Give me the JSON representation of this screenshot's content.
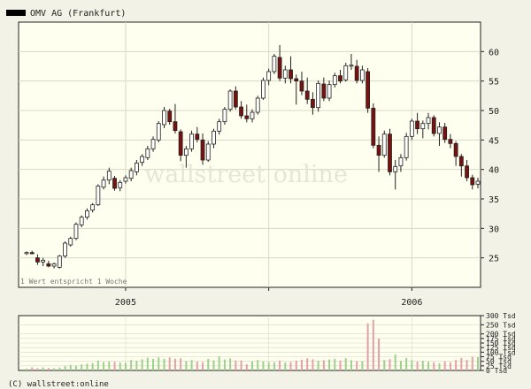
{
  "chart_data": {
    "type": "candlestick",
    "title": "OMV AG (Frankfurt)",
    "legend_swatch_color": "#000000",
    "note": "1 Wert entspricht 1 Woche",
    "copyright": "(C) wallstreet:online",
    "watermark": "wallstreet online",
    "x_tick_labels": [
      {
        "label": "2005",
        "index": 18
      },
      {
        "label": "2006",
        "index": 70
      }
    ],
    "price_axis": {
      "ylim": [
        20,
        65
      ],
      "ticks": [
        25,
        30,
        35,
        40,
        45,
        50,
        55,
        60
      ]
    },
    "volume_axis": {
      "ylim": [
        0,
        300
      ],
      "ticks": [
        0,
        25,
        50,
        75,
        100,
        125,
        150,
        175,
        200,
        250,
        300
      ],
      "unit": "Tsd"
    },
    "colors": {
      "up": "#ffffff",
      "down": "#7a1010",
      "vol_up": "#9cd08c",
      "vol_down": "#e4a0a8",
      "grid": "#d8d8c8",
      "plot_bg": "#ffffef"
    },
    "candles": [
      [
        25.8,
        26.1,
        25.5,
        25.9
      ],
      [
        25.9,
        26.2,
        25.6,
        25.7
      ],
      [
        25.0,
        25.6,
        23.8,
        24.3
      ],
      [
        24.3,
        25.0,
        23.6,
        24.6
      ],
      [
        24.0,
        24.5,
        23.4,
        23.6
      ],
      [
        23.6,
        24.2,
        23.2,
        24.0
      ],
      [
        23.4,
        25.5,
        23.2,
        25.3
      ],
      [
        25.3,
        27.8,
        25.0,
        27.5
      ],
      [
        27.2,
        28.6,
        26.9,
        28.3
      ],
      [
        28.3,
        31.0,
        28.0,
        30.7
      ],
      [
        30.6,
        32.2,
        30.2,
        31.9
      ],
      [
        31.9,
        33.4,
        31.5,
        33.0
      ],
      [
        33.1,
        34.3,
        32.7,
        34.0
      ],
      [
        34.0,
        37.5,
        33.8,
        37.2
      ],
      [
        37.0,
        38.8,
        36.6,
        38.2
      ],
      [
        38.2,
        40.3,
        37.5,
        39.7
      ],
      [
        38.5,
        38.9,
        36.4,
        36.8
      ],
      [
        36.9,
        38.2,
        36.3,
        37.8
      ],
      [
        38.0,
        39.0,
        37.6,
        38.6
      ],
      [
        38.5,
        40.3,
        38.0,
        39.8
      ],
      [
        39.6,
        41.6,
        39.0,
        41.1
      ],
      [
        41.2,
        42.6,
        40.6,
        42.2
      ],
      [
        42.0,
        44.0,
        41.6,
        43.5
      ],
      [
        43.5,
        45.6,
        43.0,
        45.1
      ],
      [
        45.0,
        48.2,
        44.6,
        47.8
      ],
      [
        47.6,
        50.6,
        47.0,
        50.0
      ],
      [
        49.9,
        50.3,
        47.6,
        48.1
      ],
      [
        48.1,
        51.1,
        46.1,
        46.6
      ],
      [
        46.4,
        46.8,
        41.4,
        42.4
      ],
      [
        42.4,
        44.0,
        40.3,
        43.5
      ],
      [
        43.5,
        46.6,
        43.0,
        46.0
      ],
      [
        46.0,
        47.2,
        44.6,
        45.1
      ],
      [
        45.0,
        46.1,
        40.8,
        41.6
      ],
      [
        41.6,
        44.8,
        41.3,
        44.3
      ],
      [
        44.3,
        46.9,
        43.6,
        46.5
      ],
      [
        46.5,
        48.6,
        45.9,
        48.1
      ],
      [
        48.1,
        50.6,
        47.6,
        50.2
      ],
      [
        50.2,
        53.6,
        49.8,
        53.3
      ],
      [
        53.3,
        54.1,
        50.2,
        50.6
      ],
      [
        50.6,
        51.6,
        48.6,
        49.1
      ],
      [
        49.1,
        51.0,
        48.0,
        48.6
      ],
      [
        48.6,
        50.2,
        48.0,
        49.7
      ],
      [
        49.7,
        52.5,
        49.3,
        52.1
      ],
      [
        52.1,
        55.6,
        51.8,
        55.1
      ],
      [
        55.1,
        57.1,
        54.3,
        56.6
      ],
      [
        56.6,
        59.6,
        56.2,
        59.2
      ],
      [
        59.0,
        61.1,
        55.0,
        55.5
      ],
      [
        55.5,
        57.6,
        54.6,
        56.9
      ],
      [
        56.9,
        59.2,
        54.6,
        55.4
      ],
      [
        55.4,
        56.1,
        51.0,
        55.0
      ],
      [
        55.0,
        56.6,
        52.6,
        53.3
      ],
      [
        53.3,
        55.6,
        51.1,
        51.9
      ],
      [
        51.9,
        53.1,
        49.3,
        50.5
      ],
      [
        50.5,
        55.1,
        49.8,
        54.6
      ],
      [
        54.5,
        55.6,
        51.6,
        52.1
      ],
      [
        52.1,
        55.1,
        51.6,
        54.4
      ],
      [
        54.4,
        56.4,
        53.9,
        55.9
      ],
      [
        55.9,
        56.9,
        54.6,
        55.0
      ],
      [
        55.2,
        58.1,
        54.9,
        57.6
      ],
      [
        57.6,
        59.6,
        56.9,
        57.7
      ],
      [
        57.5,
        58.6,
        54.6,
        55.1
      ],
      [
        55.1,
        57.6,
        54.6,
        56.9
      ],
      [
        56.6,
        57.2,
        49.6,
        50.4
      ],
      [
        50.4,
        51.2,
        43.6,
        44.1
      ],
      [
        44.1,
        45.6,
        39.6,
        42.4
      ],
      [
        42.4,
        46.6,
        42.0,
        46.0
      ],
      [
        46.0,
        46.9,
        39.0,
        39.6
      ],
      [
        39.6,
        41.6,
        36.6,
        40.5
      ],
      [
        40.6,
        42.6,
        39.6,
        42.0
      ],
      [
        42.0,
        46.2,
        41.5,
        45.6
      ],
      [
        45.6,
        48.6,
        45.0,
        48.2
      ],
      [
        48.2,
        49.6,
        46.0,
        46.9
      ],
      [
        46.9,
        48.3,
        45.3,
        47.8
      ],
      [
        47.8,
        49.6,
        46.8,
        48.8
      ],
      [
        48.8,
        49.2,
        45.6,
        46.1
      ],
      [
        46.1,
        48.0,
        44.0,
        47.2
      ],
      [
        47.2,
        47.9,
        44.5,
        45.1
      ],
      [
        45.1,
        46.0,
        43.6,
        44.4
      ],
      [
        44.4,
        44.8,
        40.6,
        42.2
      ],
      [
        42.2,
        42.6,
        38.8,
        40.6
      ],
      [
        40.6,
        41.6,
        38.0,
        38.6
      ],
      [
        38.6,
        39.1,
        36.6,
        37.4
      ],
      [
        37.5,
        38.6,
        36.8,
        38.0
      ]
    ],
    "volumes": [
      10,
      17,
      12,
      17,
      13,
      12,
      16,
      24,
      30,
      26,
      33,
      37,
      40,
      54,
      45,
      48,
      47,
      43,
      42,
      57,
      53,
      61,
      69,
      63,
      71,
      64,
      71,
      64,
      66,
      52,
      57,
      48,
      45,
      63,
      55,
      77,
      60,
      66,
      55,
      55,
      34,
      50,
      57,
      50,
      45,
      44,
      54,
      44,
      46,
      54,
      58,
      66,
      61,
      54,
      56,
      60,
      64,
      55,
      67,
      56,
      51,
      51,
      258,
      277,
      174,
      57,
      62,
      87,
      52,
      68,
      56,
      48,
      53,
      47,
      45,
      39,
      50,
      45,
      57,
      68,
      57,
      75,
      73
    ]
  }
}
